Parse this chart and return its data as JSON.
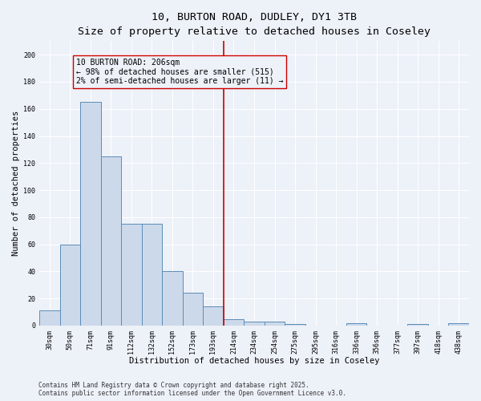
{
  "title": "10, BURTON ROAD, DUDLEY, DY1 3TB",
  "subtitle": "Size of property relative to detached houses in Coseley",
  "xlabel": "Distribution of detached houses by size in Coseley",
  "ylabel": "Number of detached properties",
  "categories": [
    "30sqm",
    "50sqm",
    "71sqm",
    "91sqm",
    "112sqm",
    "132sqm",
    "152sqm",
    "173sqm",
    "193sqm",
    "214sqm",
    "234sqm",
    "254sqm",
    "275sqm",
    "295sqm",
    "316sqm",
    "336sqm",
    "356sqm",
    "377sqm",
    "397sqm",
    "418sqm",
    "438sqm"
  ],
  "values": [
    11,
    60,
    165,
    125,
    75,
    75,
    40,
    24,
    14,
    5,
    3,
    3,
    1,
    0,
    0,
    2,
    0,
    0,
    1,
    0,
    2
  ],
  "bar_color": "#ccd9ea",
  "bar_edge_color": "#5b8db8",
  "vline_x_index": 9,
  "vline_color": "#cc0000",
  "annotation_text": "10 BURTON ROAD: 206sqm\n← 98% of detached houses are smaller (515)\n2% of semi-detached houses are larger (11) →",
  "ylim": [
    0,
    210
  ],
  "yticks": [
    0,
    20,
    40,
    60,
    80,
    100,
    120,
    140,
    160,
    180,
    200
  ],
  "background_color": "#edf1f8",
  "grid_color": "#ffffff",
  "footnote": "Contains HM Land Registry data © Crown copyright and database right 2025.\nContains public sector information licensed under the Open Government Licence v3.0.",
  "title_fontsize": 9.5,
  "annotation_fontsize": 7,
  "tick_fontsize": 6,
  "xlabel_fontsize": 7.5,
  "ylabel_fontsize": 7.5,
  "footnote_fontsize": 5.5
}
